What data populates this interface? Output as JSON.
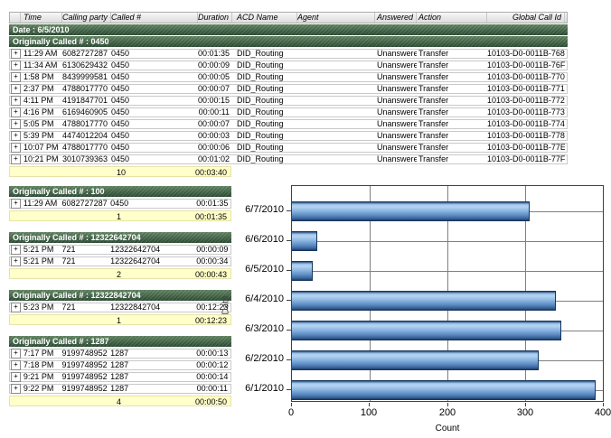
{
  "icons": {
    "expand": "+"
  },
  "header": {
    "columns": [
      "Time",
      "Calling party #",
      "Called #",
      "Duration",
      "ACD Name",
      "Agent",
      "Answered",
      "Action",
      "Global Call Id"
    ]
  },
  "report": {
    "date_banner": "Date : 6/5/2010",
    "main_group": {
      "banner": "Originally Called # : 0450",
      "rows": [
        {
          "time": "11:29 AM",
          "calling_party": "6082727287",
          "called": "0450",
          "duration": "00:01:35",
          "acd_name": "DID_Routing",
          "agent": "",
          "answered": "Unanswered",
          "action": "Transfer",
          "global_call_id": "10103-D0-0011B-768"
        },
        {
          "time": "11:34 AM",
          "calling_party": "6130629432",
          "called": "0450",
          "duration": "00:00:09",
          "acd_name": "DID_Routing",
          "agent": "",
          "answered": "Unanswered",
          "action": "Transfer",
          "global_call_id": "10103-D0-0011B-76F"
        },
        {
          "time": "1:58 PM",
          "calling_party": "8439999581",
          "called": "0450",
          "duration": "00:00:05",
          "acd_name": "DID_Routing",
          "agent": "",
          "answered": "Unanswered",
          "action": "Transfer",
          "global_call_id": "10103-D0-0011B-770"
        },
        {
          "time": "2:37 PM",
          "calling_party": "4788017770",
          "called": "0450",
          "duration": "00:00:07",
          "acd_name": "DID_Routing",
          "agent": "",
          "answered": "Unanswered",
          "action": "Transfer",
          "global_call_id": "10103-D0-0011B-771"
        },
        {
          "time": "4:11 PM",
          "calling_party": "4191847701",
          "called": "0450",
          "duration": "00:00:15",
          "acd_name": "DID_Routing",
          "agent": "",
          "answered": "Unanswered",
          "action": "Transfer",
          "global_call_id": "10103-D0-0011B-772"
        },
        {
          "time": "4:16 PM",
          "calling_party": "6169460905",
          "called": "0450",
          "duration": "00:00:11",
          "acd_name": "DID_Routing",
          "agent": "",
          "answered": "Unanswered",
          "action": "Transfer",
          "global_call_id": "10103-D0-0011B-773"
        },
        {
          "time": "5:05 PM",
          "calling_party": "4788017770",
          "called": "0450",
          "duration": "00:00:07",
          "acd_name": "DID_Routing",
          "agent": "",
          "answered": "Unanswered",
          "action": "Transfer",
          "global_call_id": "10103-D0-0011B-774"
        },
        {
          "time": "5:39 PM",
          "calling_party": "4474012204",
          "called": "0450",
          "duration": "00:00:03",
          "acd_name": "DID_Routing",
          "agent": "",
          "answered": "Unanswered",
          "action": "Transfer",
          "global_call_id": "10103-D0-0011B-778"
        },
        {
          "time": "10:07 PM",
          "calling_party": "4788017770",
          "called": "0450",
          "duration": "00:00:06",
          "acd_name": "DID_Routing",
          "agent": "",
          "answered": "Unanswered",
          "action": "Transfer",
          "global_call_id": "10103-D0-0011B-77E"
        },
        {
          "time": "10:21 PM",
          "calling_party": "3010739363",
          "called": "0450",
          "duration": "00:01:02",
          "acd_name": "DID_Routing",
          "agent": "",
          "answered": "Unanswered",
          "action": "Transfer",
          "global_call_id": "10103-D0-0011B-77F"
        }
      ],
      "summary": {
        "count": "10",
        "total_duration": "00:03:40"
      }
    },
    "sub_groups": [
      {
        "banner": "Originally Called # : 100",
        "rows": [
          {
            "time": "11:29 AM",
            "calling_party": "6082727287",
            "called": "0450",
            "duration": "00:01:35"
          }
        ],
        "summary": {
          "count": "1",
          "total_duration": "00:01:35"
        }
      },
      {
        "banner": "Originally Called # : 12322642704",
        "rows": [
          {
            "time": "5:21 PM",
            "calling_party": "721",
            "called": "12322642704",
            "duration": "00:00:09"
          },
          {
            "time": "5:21 PM",
            "calling_party": "721",
            "called": "12322642704",
            "duration": "00:00:34"
          }
        ],
        "summary": {
          "count": "2",
          "total_duration": "00:00:43"
        }
      },
      {
        "banner": "Originally Called # : 12322842704",
        "rows": [
          {
            "time": "5:23 PM",
            "calling_party": "721",
            "called": "12322842704",
            "duration": "00:12:23"
          }
        ],
        "summary": {
          "count": "1",
          "total_duration": "00:12:23"
        }
      },
      {
        "banner": "Originally Called # : 1287",
        "rows": [
          {
            "time": "7:17 PM",
            "calling_party": "9199748952",
            "called": "1287",
            "duration": "00:00:13"
          },
          {
            "time": "7:18 PM",
            "calling_party": "9199748952",
            "called": "1287",
            "duration": "00:00:12"
          },
          {
            "time": "9:21 PM",
            "calling_party": "9199748952",
            "called": "1287",
            "duration": "00:00:14"
          },
          {
            "time": "9:22 PM",
            "calling_party": "9199748952",
            "called": "1287",
            "duration": "00:00:11"
          }
        ],
        "summary": {
          "count": "4",
          "total_duration": "00:00:50"
        }
      }
    ]
  },
  "chart_data": {
    "type": "bar",
    "orientation": "horizontal",
    "title": "",
    "xlabel": "Count",
    "ylabel": "Date",
    "categories": [
      "6/7/2010",
      "6/6/2010",
      "6/5/2010",
      "6/4/2010",
      "6/3/2010",
      "6/2/2010",
      "6/1/2010"
    ],
    "values": [
      306,
      32,
      27,
      340,
      347,
      317,
      391
    ],
    "xlim": [
      0,
      400
    ],
    "xticks": [
      0,
      100,
      200,
      300,
      400
    ],
    "grid": true,
    "legend": false,
    "bar_color_light": "#a9cbee",
    "bar_color_dark": "#3a639b",
    "bar_border_color": "#16365c",
    "grid_color": "#808080"
  }
}
